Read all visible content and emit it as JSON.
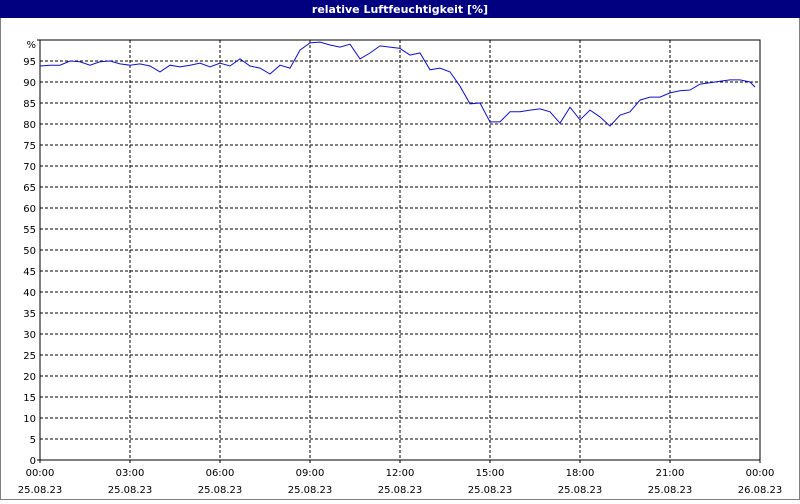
{
  "chart_data": {
    "type": "line",
    "title": "relative Luftfeuchtigkeit [%]",
    "x": [
      "2023-08-25T00:00",
      "2023-08-25T00:20",
      "2023-08-25T00:40",
      "2023-08-25T01:00",
      "2023-08-25T01:20",
      "2023-08-25T01:40",
      "2023-08-25T02:00",
      "2023-08-25T02:20",
      "2023-08-25T02:40",
      "2023-08-25T03:00",
      "2023-08-25T03:20",
      "2023-08-25T03:40",
      "2023-08-25T04:00",
      "2023-08-25T04:20",
      "2023-08-25T04:40",
      "2023-08-25T05:00",
      "2023-08-25T05:20",
      "2023-08-25T05:40",
      "2023-08-25T06:00",
      "2023-08-25T06:20",
      "2023-08-25T06:40",
      "2023-08-25T07:00",
      "2023-08-25T07:20",
      "2023-08-25T07:40",
      "2023-08-25T08:00",
      "2023-08-25T08:20",
      "2023-08-25T08:40",
      "2023-08-25T09:00",
      "2023-08-25T09:20",
      "2023-08-25T09:40",
      "2023-08-25T10:00",
      "2023-08-25T10:20",
      "2023-08-25T10:40",
      "2023-08-25T11:00",
      "2023-08-25T11:20",
      "2023-08-25T11:40",
      "2023-08-25T12:00",
      "2023-08-25T12:20",
      "2023-08-25T12:40",
      "2023-08-25T13:00",
      "2023-08-25T13:20",
      "2023-08-25T13:40",
      "2023-08-25T14:00",
      "2023-08-25T14:20",
      "2023-08-25T14:40",
      "2023-08-25T15:00",
      "2023-08-25T15:20",
      "2023-08-25T15:40",
      "2023-08-25T16:00",
      "2023-08-25T16:20",
      "2023-08-25T16:40",
      "2023-08-25T17:00",
      "2023-08-25T17:20",
      "2023-08-25T17:40",
      "2023-08-25T18:00",
      "2023-08-25T18:20",
      "2023-08-25T18:40",
      "2023-08-25T19:00",
      "2023-08-25T19:20",
      "2023-08-25T19:40",
      "2023-08-25T20:00",
      "2023-08-25T20:20",
      "2023-08-25T20:40",
      "2023-08-25T21:00",
      "2023-08-25T21:20",
      "2023-08-25T21:40",
      "2023-08-25T22:00",
      "2023-08-25T22:20",
      "2023-08-25T22:40",
      "2023-08-25T23:00",
      "2023-08-25T23:20",
      "2023-08-25T23:40",
      "2023-08-25T23:50"
    ],
    "series": [
      {
        "color": "#1010c8",
        "values": [
          93.8,
          94,
          94,
          95,
          94.8,
          94,
          94.8,
          95,
          94.3,
          94,
          94.3,
          93.8,
          92.4,
          94,
          93.6,
          94,
          94.5,
          93.6,
          94.5,
          93.8,
          95.5,
          93.8,
          93.3,
          91.9,
          94,
          93.3,
          97.6,
          99.3,
          99.5,
          98.8,
          98.3,
          99,
          95.5,
          96.9,
          98.6,
          98.3,
          98,
          96.4,
          96.9,
          92.9,
          93.3,
          92.4,
          89,
          84.8,
          85,
          80.5,
          80.5,
          82.9,
          82.9,
          83.3,
          83.6,
          82.9,
          80.2,
          84,
          81,
          83.3,
          81.7,
          79.5,
          82.1,
          82.9,
          85.7,
          86.4,
          86.4,
          87.4,
          87.9,
          88.1,
          89.5,
          89.8,
          90.2,
          90.5,
          90.5,
          90,
          88.8
        ]
      }
    ],
    "xlim": [
      "2023-08-25T00:00",
      "2023-08-26T00:00"
    ],
    "xticks": [
      {
        "value": "2023-08-25T00:00",
        "label": "00:00 25.08.23"
      },
      {
        "value": "2023-08-25T03:00",
        "label": "03:00 25.08.23"
      },
      {
        "value": "2023-08-25T06:00",
        "label": "06:00 25.08.23"
      },
      {
        "value": "2023-08-25T09:00",
        "label": "09:00 25.08.23"
      },
      {
        "value": "2023-08-25T12:00",
        "label": "12:00 25.08.23"
      },
      {
        "value": "2023-08-25T15:00",
        "label": "15:00 25.08.23"
      },
      {
        "value": "2023-08-25T18:00",
        "label": "18:00 25.08.23"
      },
      {
        "value": "2023-08-25T21:00",
        "label": "21:00 25.08.23"
      },
      {
        "value": "2023-08-26T00:00",
        "label": "00:00 26.08.23"
      }
    ],
    "ylim": [
      0,
      100
    ],
    "yticks": [
      0,
      5,
      10,
      15,
      20,
      25,
      30,
      35,
      40,
      45,
      50,
      55,
      60,
      65,
      70,
      75,
      80,
      85,
      90,
      95,
      {
        "value": 100,
        "label": "%"
      }
    ],
    "grid": true
  }
}
